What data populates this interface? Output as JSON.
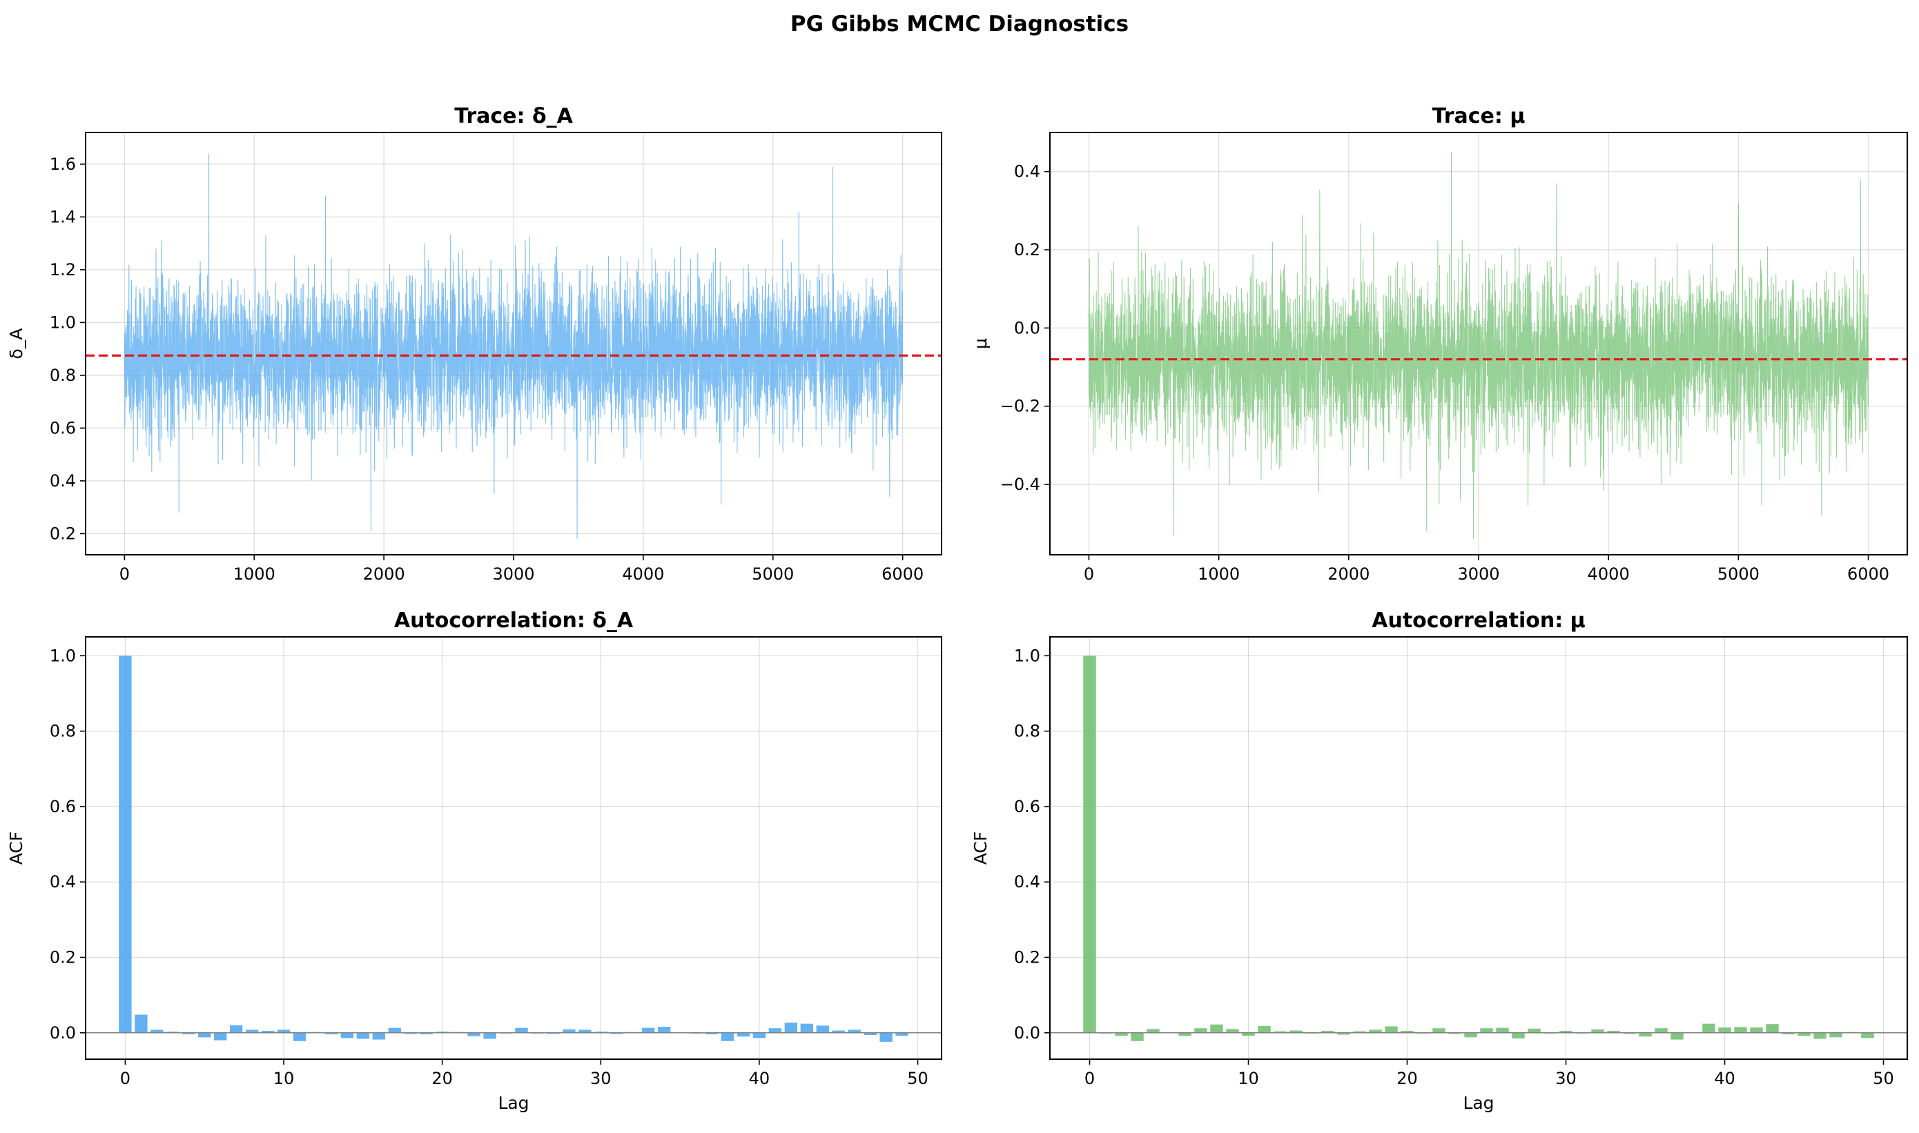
{
  "figure": {
    "title": "PG Gibbs MCMC Diagnostics"
  },
  "colors": {
    "blue": "#4da6f0",
    "green": "#6fbf6f",
    "mean_line": "#e41a1c",
    "zero_line": "#808080"
  },
  "chart_data": [
    {
      "id": "trace_delta",
      "type": "line",
      "title": "Trace: δ_A",
      "xlabel": "",
      "ylabel": "δ_A",
      "xlim": [
        -300,
        6300
      ],
      "ylim": [
        0.12,
        1.72
      ],
      "xticks": [
        0,
        1000,
        2000,
        3000,
        4000,
        5000,
        6000
      ],
      "xtick_labels": [
        "0",
        "1000",
        "2000",
        "3000",
        "4000",
        "5000",
        "6000"
      ],
      "yticks": [
        0.2,
        0.4,
        0.6,
        0.8,
        1.0,
        1.2,
        1.4,
        1.6
      ],
      "ytick_labels": [
        "0.2",
        "0.4",
        "0.6",
        "0.8",
        "1.0",
        "1.2",
        "1.4",
        "1.6"
      ],
      "grid": true,
      "mean": 0.875,
      "n_samples": 6000,
      "sd": 0.14,
      "extremes": [
        [
          650,
          1.64
        ],
        [
          3490,
          0.18
        ],
        [
          1900,
          0.21
        ],
        [
          5460,
          1.59
        ],
        [
          1550,
          1.48
        ],
        [
          5200,
          1.42
        ],
        [
          2850,
          0.35
        ],
        [
          4600,
          0.31
        ],
        [
          420,
          0.28
        ],
        [
          5900,
          0.34
        ]
      ],
      "color": "blue"
    },
    {
      "id": "trace_mu",
      "type": "line",
      "title": "Trace: μ",
      "xlabel": "",
      "ylabel": "μ",
      "xlim": [
        -300,
        6300
      ],
      "ylim": [
        -0.58,
        0.5
      ],
      "xticks": [
        0,
        1000,
        2000,
        3000,
        4000,
        5000,
        6000
      ],
      "xtick_labels": [
        "0",
        "1000",
        "2000",
        "3000",
        "4000",
        "5000",
        "6000"
      ],
      "yticks": [
        -0.4,
        -0.2,
        0.0,
        0.2,
        0.4
      ],
      "ytick_labels": [
        "−0.4",
        "−0.2",
        "0.0",
        "0.2",
        "0.4"
      ],
      "grid": true,
      "mean": -0.08,
      "n_samples": 6000,
      "sd": 0.1,
      "extremes": [
        [
          2790,
          0.45
        ],
        [
          2960,
          -0.54
        ],
        [
          650,
          -0.53
        ],
        [
          2600,
          -0.52
        ],
        [
          5940,
          0.38
        ],
        [
          5000,
          0.32
        ],
        [
          3600,
          0.37
        ],
        [
          380,
          0.26
        ],
        [
          5640,
          -0.48
        ]
      ],
      "color": "green"
    },
    {
      "id": "acf_delta",
      "type": "bar",
      "title": "Autocorrelation: δ_A",
      "xlabel": "Lag",
      "ylabel": "ACF",
      "xlim": [
        -2.5,
        51.5
      ],
      "ylim": [
        -0.07,
        1.05
      ],
      "xticks": [
        0,
        10,
        20,
        30,
        40,
        50
      ],
      "xtick_labels": [
        "0",
        "10",
        "20",
        "30",
        "40",
        "50"
      ],
      "yticks": [
        0.0,
        0.2,
        0.4,
        0.6,
        0.8,
        1.0
      ],
      "ytick_labels": [
        "0.0",
        "0.2",
        "0.4",
        "0.6",
        "0.8",
        "1.0"
      ],
      "grid": true,
      "lags": [
        0,
        1,
        2,
        3,
        4,
        5,
        6,
        7,
        8,
        9,
        10,
        11,
        12,
        13,
        14,
        15,
        16,
        17,
        18,
        19,
        20,
        21,
        22,
        23,
        24,
        25,
        26,
        27,
        28,
        29,
        30,
        31,
        32,
        33,
        34,
        35,
        36,
        37,
        38,
        39,
        40,
        41,
        42,
        43,
        44,
        45,
        46,
        47,
        48,
        49
      ],
      "values": [
        1.0,
        0.048,
        0.008,
        0.003,
        -0.004,
        -0.012,
        -0.02,
        0.02,
        0.008,
        0.005,
        0.008,
        -0.022,
        0.002,
        -0.004,
        -0.014,
        -0.016,
        -0.018,
        0.013,
        -0.003,
        -0.004,
        0.003,
        0.002,
        -0.009,
        -0.016,
        -0.002,
        0.013,
        -0.002,
        -0.003,
        0.009,
        0.008,
        0.003,
        -0.003,
        0.002,
        0.013,
        0.016,
        -0.001,
        -0.002,
        -0.004,
        -0.022,
        -0.01,
        -0.014,
        0.012,
        0.027,
        0.024,
        0.019,
        0.006,
        0.008,
        -0.006,
        -0.024,
        -0.008
      ],
      "color": "blue"
    },
    {
      "id": "acf_mu",
      "type": "bar",
      "title": "Autocorrelation: μ",
      "xlabel": "Lag",
      "ylabel": "ACF",
      "xlim": [
        -2.5,
        51.5
      ],
      "ylim": [
        -0.07,
        1.05
      ],
      "xticks": [
        0,
        10,
        20,
        30,
        40,
        50
      ],
      "xtick_labels": [
        "0",
        "10",
        "20",
        "30",
        "40",
        "50"
      ],
      "yticks": [
        0.0,
        0.2,
        0.4,
        0.6,
        0.8,
        1.0
      ],
      "ytick_labels": [
        "0.0",
        "0.2",
        "0.4",
        "0.6",
        "0.8",
        "1.0"
      ],
      "grid": true,
      "lags": [
        0,
        1,
        2,
        3,
        4,
        5,
        6,
        7,
        8,
        9,
        10,
        11,
        12,
        13,
        14,
        15,
        16,
        17,
        18,
        19,
        20,
        21,
        22,
        23,
        24,
        25,
        26,
        27,
        28,
        29,
        30,
        31,
        32,
        33,
        34,
        35,
        36,
        37,
        38,
        39,
        40,
        41,
        42,
        43,
        44,
        45,
        46,
        47,
        48,
        49
      ],
      "values": [
        1.0,
        -0.002,
        -0.008,
        -0.022,
        0.01,
        -0.001,
        -0.008,
        0.012,
        0.022,
        0.01,
        -0.008,
        0.018,
        0.004,
        0.006,
        -0.002,
        0.005,
        -0.005,
        0.004,
        0.008,
        0.017,
        0.005,
        -0.002,
        0.012,
        -0.003,
        -0.012,
        0.012,
        0.013,
        -0.015,
        0.011,
        -0.002,
        0.005,
        -0.002,
        0.009,
        0.005,
        -0.003,
        -0.01,
        0.012,
        -0.018,
        -0.001,
        0.024,
        0.014,
        0.015,
        0.014,
        0.023,
        -0.004,
        -0.008,
        -0.016,
        -0.012,
        0.002,
        -0.014
      ],
      "color": "green"
    }
  ]
}
